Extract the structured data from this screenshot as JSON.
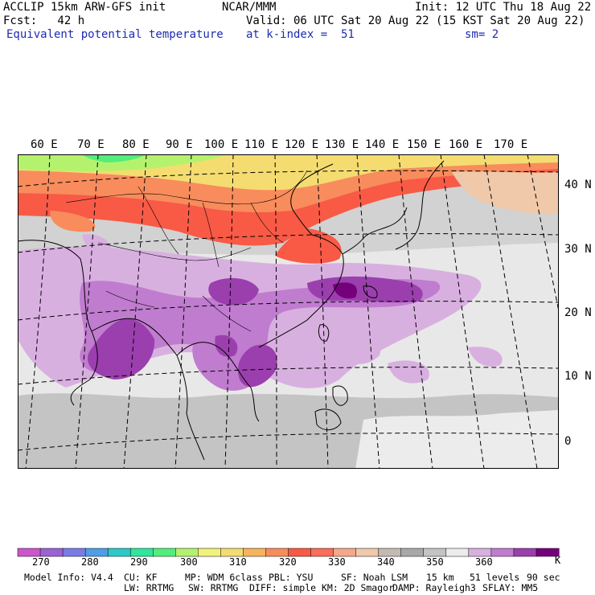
{
  "header": {
    "model": "ACCLIP 15km ARW-GFS init",
    "org": "NCAR/MMM",
    "init": "Init: 12 UTC Thu 18 Aug 22",
    "fcst": "Fcst:   42 h",
    "valid": "Valid: 06 UTC Sat 20 Aug 22 (15 KST Sat 20 Aug 22)",
    "field": "Equivalent potential temperature",
    "level": "at k-index =  51",
    "smooth": "sm= 2"
  },
  "map": {
    "lon_labels": [
      "60 E",
      "70 E",
      "80 E",
      "90 E",
      "100 E",
      "110 E",
      "120 E",
      "130 E",
      "140 E",
      "150 E",
      "160 E",
      "170 E"
    ],
    "lat_labels": [
      "40 N",
      "30 N",
      "20 N",
      "10 N",
      "0"
    ]
  },
  "colorbar": {
    "colors": [
      "#cc55cc",
      "#9b62d4",
      "#7b7be6",
      "#4f9ee6",
      "#2ec8c8",
      "#2ee69e",
      "#52ee7a",
      "#b4f26e",
      "#f2f27a",
      "#f4dc70",
      "#f8b45c",
      "#f88c5c",
      "#f85a46",
      "#fa6e5a",
      "#f4a88a",
      "#f0c8aa",
      "#c4bab4",
      "#a8a8a8",
      "#c4c4c4",
      "#ececec",
      "#d8b0e0",
      "#c07ccf",
      "#9b3fae",
      "#74007a"
    ],
    "ticks": [
      "270",
      "280",
      "290",
      "300",
      "310",
      "320",
      "330",
      "340",
      "350",
      "360"
    ],
    "unit": "K"
  },
  "footer": {
    "line1": [
      "Model Info: V4.4",
      "CU: KF",
      "MP: WDM 6class",
      "PBL: YSU",
      "SF: Noah LSM",
      "15 km",
      "51 levels",
      "90 sec"
    ],
    "line2": [
      "LW: RRTMG",
      "SW: RRTMG",
      "DIFF: simple",
      "KM: 2D Smagor",
      "DAMP: Rayleigh3",
      "SFLAY: MM5"
    ]
  }
}
